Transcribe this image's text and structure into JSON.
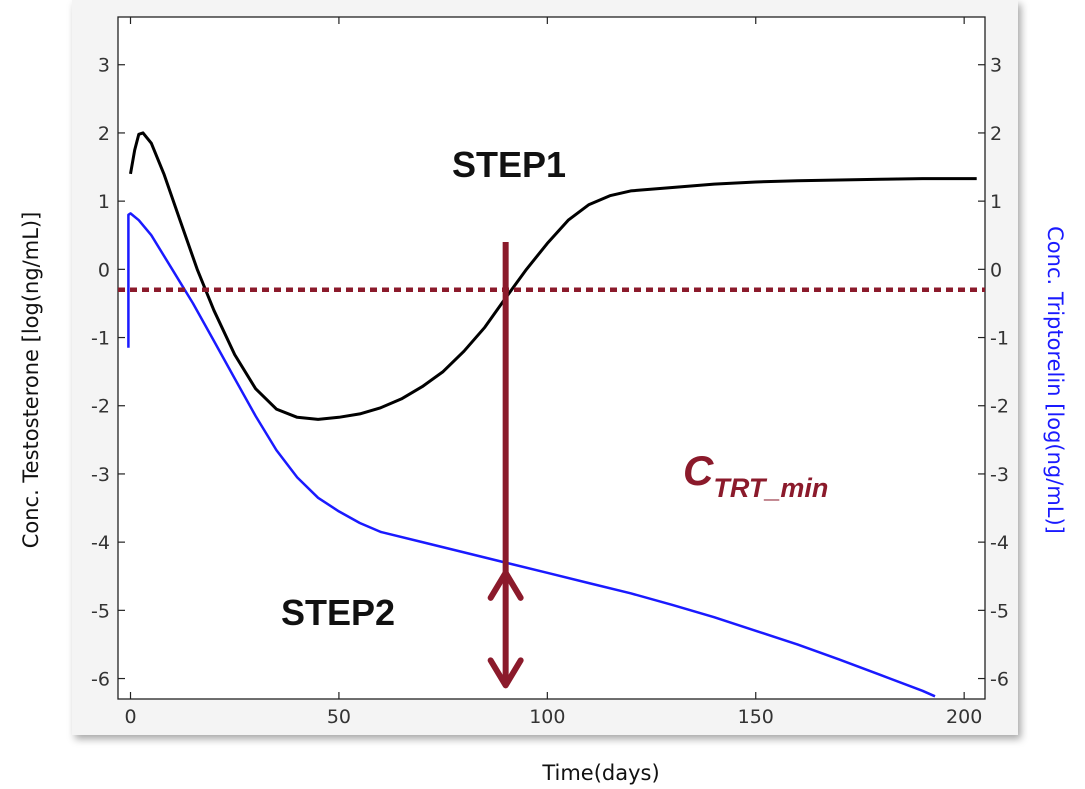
{
  "chart_data": {
    "type": "line",
    "xlabel": "Time(days)",
    "ylabel_left": "Conc. Testosterone [log(ng/mL)]",
    "ylabel_right": "Conc. Triptorelin [log(ng/mL)]",
    "xlim": [
      -3,
      205
    ],
    "ylim": [
      -6.3,
      3.7
    ],
    "x_ticks": [
      0,
      50,
      100,
      150,
      200
    ],
    "y_ticks": [
      3,
      2,
      1,
      0,
      -1,
      -2,
      -3,
      -4,
      -5,
      -6
    ],
    "x_tick_labels": [
      "0",
      "50",
      "100",
      "150",
      "200"
    ],
    "y_tick_labels": [
      "3",
      "2",
      "1",
      "0",
      "-1",
      "-2",
      "-3",
      "-4",
      "-5",
      "-6"
    ],
    "grid": false,
    "colors": {
      "testosterone": "#000000",
      "triptorelin": "#1a1aff",
      "annotation": "#8b1a2b"
    },
    "series": [
      {
        "axis": "left",
        "color": "#000000",
        "points": [
          [
            0,
            1.4
          ],
          [
            1,
            1.75
          ],
          [
            2,
            1.98
          ],
          [
            3,
            2.0
          ],
          [
            5,
            1.85
          ],
          [
            8,
            1.4
          ],
          [
            12,
            0.7
          ],
          [
            16,
            0.0
          ],
          [
            20,
            -0.6
          ],
          [
            25,
            -1.25
          ],
          [
            30,
            -1.75
          ],
          [
            35,
            -2.05
          ],
          [
            40,
            -2.17
          ],
          [
            45,
            -2.2
          ],
          [
            50,
            -2.17
          ],
          [
            55,
            -2.12
          ],
          [
            60,
            -2.03
          ],
          [
            65,
            -1.9
          ],
          [
            70,
            -1.72
          ],
          [
            75,
            -1.5
          ],
          [
            80,
            -1.2
          ],
          [
            85,
            -0.85
          ],
          [
            90,
            -0.42
          ],
          [
            95,
            0.0
          ],
          [
            100,
            0.38
          ],
          [
            105,
            0.72
          ],
          [
            110,
            0.95
          ],
          [
            115,
            1.08
          ],
          [
            120,
            1.15
          ],
          [
            130,
            1.2
          ],
          [
            140,
            1.25
          ],
          [
            150,
            1.28
          ],
          [
            160,
            1.3
          ],
          [
            170,
            1.31
          ],
          [
            180,
            1.32
          ],
          [
            190,
            1.33
          ],
          [
            200,
            1.33
          ],
          [
            203,
            1.33
          ]
        ]
      },
      {
        "axis": "right",
        "color": "#1a1aff",
        "points": [
          [
            -0.5,
            -1.15
          ],
          [
            -0.5,
            0.8
          ],
          [
            0,
            0.82
          ],
          [
            2,
            0.72
          ],
          [
            5,
            0.5
          ],
          [
            10,
            0.0
          ],
          [
            15,
            -0.5
          ],
          [
            20,
            -1.05
          ],
          [
            25,
            -1.6
          ],
          [
            30,
            -2.15
          ],
          [
            35,
            -2.65
          ],
          [
            40,
            -3.05
          ],
          [
            45,
            -3.35
          ],
          [
            50,
            -3.55
          ],
          [
            55,
            -3.72
          ],
          [
            60,
            -3.85
          ],
          [
            70,
            -4.0
          ],
          [
            80,
            -4.15
          ],
          [
            90,
            -4.3
          ],
          [
            100,
            -4.45
          ],
          [
            110,
            -4.6
          ],
          [
            120,
            -4.75
          ],
          [
            130,
            -4.92
          ],
          [
            140,
            -5.1
          ],
          [
            150,
            -5.3
          ],
          [
            160,
            -5.5
          ],
          [
            170,
            -5.72
          ],
          [
            180,
            -5.95
          ],
          [
            190,
            -6.18
          ],
          [
            193,
            -6.26
          ]
        ]
      }
    ],
    "threshold_y": -0.3,
    "marker_x": 90,
    "annotations": {
      "step1": "STEP1",
      "step2": "STEP2",
      "ctrt_main": "C",
      "ctrt_sub": "TRT_min"
    }
  }
}
